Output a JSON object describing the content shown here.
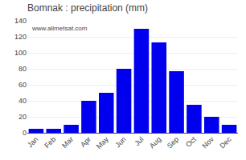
{
  "chart_data": {
    "type": "bar",
    "title": "Bomnak : precipitation (mm)",
    "categories": [
      "Jan",
      "Feb",
      "Mar",
      "Apr",
      "May",
      "Jun",
      "Jul",
      "Aug",
      "Sep",
      "Oct",
      "Nov",
      "Dec"
    ],
    "values": [
      5,
      5,
      10,
      40,
      50,
      80,
      130,
      113,
      77,
      35,
      20,
      10
    ],
    "color": "#0000ee",
    "ylim": [
      0,
      140
    ],
    "yticks": [
      0,
      20,
      40,
      60,
      80,
      100,
      120,
      140
    ],
    "grid": true,
    "annotations": [
      "www.allmetsat.com"
    ]
  }
}
